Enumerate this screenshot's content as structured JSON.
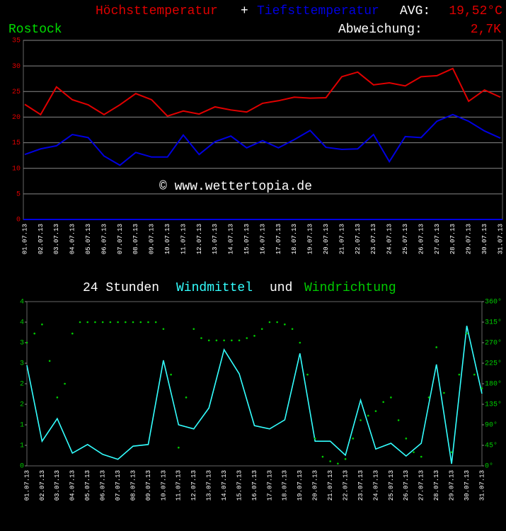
{
  "chart_data": [
    {
      "type": "line",
      "location": "Rostock",
      "title_sep": "+",
      "avg_label": "AVG:",
      "avg_value": "19,52°C",
      "deviation_label": "Abweichung:",
      "deviation_value": "2,7K",
      "watermark": "© www.wettertopia.de",
      "categories": [
        "01.07.13",
        "02.07.13",
        "03.07.13",
        "04.07.13",
        "05.07.13",
        "06.07.13",
        "07.07.13",
        "08.07.13",
        "09.07.13",
        "10.07.13",
        "11.07.13",
        "12.07.13",
        "13.07.13",
        "14.07.13",
        "15.07.13",
        "16.07.13",
        "17.07.13",
        "18.07.13",
        "19.07.13",
        "20.07.13",
        "21.07.13",
        "22.07.13",
        "23.07.13",
        "24.07.13",
        "25.07.13",
        "26.07.13",
        "27.07.13",
        "28.07.13",
        "29.07.13",
        "30.07.13",
        "31.07.13"
      ],
      "series": [
        {
          "name": "Höchsttemperatur",
          "color": "#e00000",
          "values": [
            22.5,
            20.5,
            25.9,
            23.4,
            22.4,
            20.5,
            22.4,
            24.6,
            23.4,
            20.2,
            21.2,
            20.6,
            22.0,
            21.4,
            21.0,
            22.7,
            23.2,
            23.9,
            23.7,
            23.8,
            27.9,
            28.8,
            26.3,
            26.7,
            26.1,
            27.9,
            28.1,
            29.5,
            23.1,
            25.3,
            23.9
          ]
        },
        {
          "name": "Tiefsttemperatur",
          "color": "#0000e0",
          "values": [
            12.7,
            13.8,
            14.4,
            16.6,
            16.0,
            12.4,
            10.6,
            13.1,
            12.2,
            12.2,
            16.5,
            12.7,
            15.2,
            16.3,
            14.0,
            15.4,
            14.0,
            15.6,
            17.4,
            14.1,
            13.7,
            13.8,
            16.6,
            11.3,
            16.2,
            16.0,
            19.2,
            20.5,
            19.2,
            17.3,
            15.9
          ]
        }
      ],
      "ylim": [
        0,
        35
      ],
      "yticks": [
        0,
        5,
        10,
        15,
        20,
        25,
        30,
        35
      ],
      "grid": true
    },
    {
      "type": "line",
      "title": "24 Stunden",
      "title_join": "und",
      "categories": [
        "01.07.13",
        "02.07.13",
        "03.07.13",
        "04.07.13",
        "05.07.13",
        "06.07.13",
        "07.07.13",
        "08.07.13",
        "09.07.13",
        "10.07.13",
        "11.07.13",
        "12.07.13",
        "13.07.13",
        "14.07.13",
        "15.07.13",
        "16.07.13",
        "17.07.13",
        "18.07.13",
        "19.07.13",
        "20.07.13",
        "21.07.13",
        "22.07.13",
        "23.07.13",
        "24.07.13",
        "25.07.13",
        "26.07.13",
        "27.07.13",
        "28.07.13",
        "29.07.13",
        "30.07.13",
        "31.07.13"
      ],
      "xlim": [
        1,
        31
      ],
      "series": [
        {
          "name": "Windmittel",
          "color": "#33ffff",
          "values": [
            2.45,
            0.6,
            1.15,
            0.31,
            0.52,
            0.28,
            0.16,
            0.48,
            0.52,
            2.57,
            1.0,
            0.9,
            1.41,
            2.83,
            2.24,
            0.98,
            0.9,
            1.12,
            2.74,
            0.6,
            0.6,
            0.26,
            1.6,
            0.41,
            0.55,
            0.24,
            0.55,
            2.47,
            0.05,
            3.41,
            1.76
          ]
        },
        {
          "name": "Windrichtung",
          "color": "#00cc00",
          "axis": "y2",
          "marker": "dot",
          "x": [
            1,
            1.5,
            2,
            2.5,
            3,
            3.5,
            4,
            4.5,
            5,
            5.5,
            6,
            6.5,
            7,
            7.5,
            8,
            8.5,
            9,
            9.5,
            10,
            10.5,
            11,
            11.5,
            12,
            12.5,
            13,
            13.5,
            14,
            14.5,
            15,
            15.5,
            16,
            16.5,
            17,
            17.5,
            18,
            18.5,
            19,
            19.5,
            20,
            20.5,
            21,
            21.5,
            22,
            22.5,
            23,
            23.5,
            24,
            24.5,
            25,
            25.5,
            26,
            26.5,
            27,
            27.5,
            28,
            28.5,
            29,
            29.5,
            30,
            30.5,
            31
          ],
          "values": [
            270,
            290,
            310,
            230,
            150,
            180,
            290,
            315,
            315,
            315,
            315,
            315,
            315,
            315,
            315,
            315,
            315,
            315,
            300,
            200,
            40,
            150,
            300,
            280,
            275,
            275,
            275,
            275,
            275,
            280,
            285,
            300,
            315,
            315,
            310,
            300,
            270,
            200,
            60,
            20,
            10,
            5,
            15,
            60,
            100,
            110,
            120,
            140,
            150,
            100,
            60,
            30,
            20,
            150,
            260,
            160,
            30,
            200,
            290,
            200,
            170
          ]
        }
      ],
      "ylim": [
        0,
        4
      ],
      "yticks": [
        0,
        {
          "value": 0.5,
          "label": "1"
        },
        1,
        {
          "value": 1.5,
          "label": "2"
        },
        2,
        {
          "value": 2.5,
          "label": "3"
        },
        3,
        {
          "value": 3.5,
          "label": "4"
        },
        4
      ],
      "y2lim": [
        0,
        360
      ],
      "y2ticks": [
        {
          "value": 0,
          "label": "0°"
        },
        {
          "value": 45,
          "label": "45°"
        },
        {
          "value": 90,
          "label": "90°"
        },
        {
          "value": 135,
          "label": "135°"
        },
        {
          "value": 180,
          "label": "180°"
        },
        {
          "value": 225,
          "label": "225°"
        },
        {
          "value": 270,
          "label": "270°"
        },
        {
          "value": 315,
          "label": "315°"
        },
        {
          "value": 360,
          "label": "360°"
        }
      ],
      "grid": false
    }
  ]
}
